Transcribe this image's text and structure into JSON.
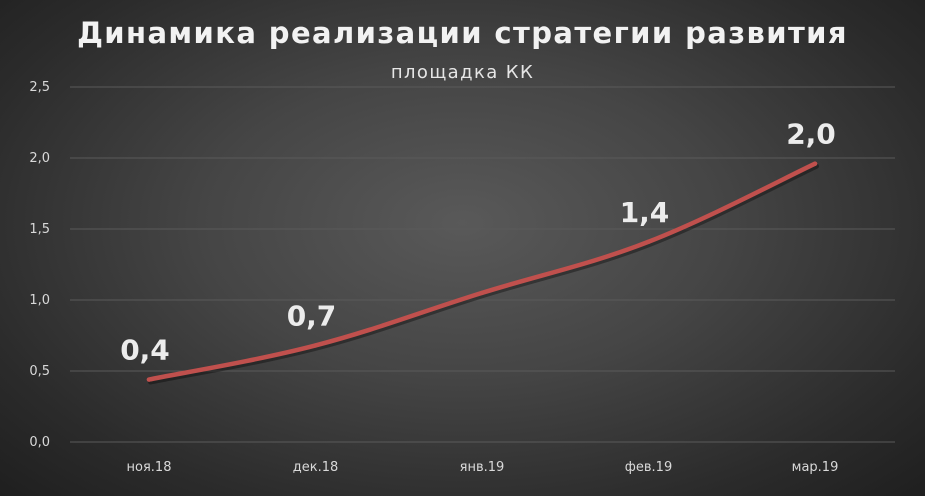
{
  "chart_data": {
    "type": "line",
    "title": "Динамика реализации стратегии развития",
    "subtitle": "площадка КК",
    "categories": [
      "ноя.18",
      "дек.18",
      "янв.19",
      "фев.19",
      "мар.19"
    ],
    "series": [
      {
        "values": [
          0.44,
          0.68,
          1.05,
          1.41,
          1.96
        ],
        "data_labels": [
          "0,4",
          "0,7",
          "",
          "1,4",
          "2,0"
        ],
        "color": "#c0504d"
      }
    ],
    "ylim": [
      0,
      2.5
    ],
    "yticks": [
      "0,0",
      "0,5",
      "1,0",
      "1,5",
      "2,0",
      "2,5"
    ],
    "grid": true,
    "legend": "none"
  },
  "colors": {
    "line": "#c0504d",
    "gridline": "#5a5a5a",
    "axis_text": "#d9d9d9",
    "data_label": "#ececec",
    "title_text": "#f2f2f2"
  }
}
